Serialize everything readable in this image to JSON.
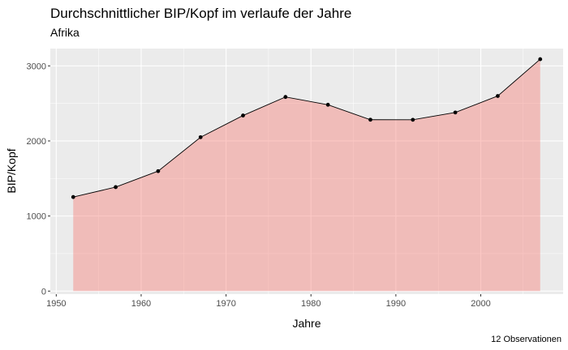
{
  "chart_data": {
    "type": "area",
    "title": "Durchschnittlicher BIP/Kopf im verlaufe der Jahre",
    "subtitle": "Afrika",
    "xlabel": "Jahre",
    "ylabel": "BIP/Kopf",
    "caption": "12 Observationen",
    "xlim": [
      1949.3,
      2009.7
    ],
    "ylim": [
      -40,
      3230
    ],
    "x_ticks": [
      1950,
      1960,
      1970,
      1980,
      1990,
      2000
    ],
    "y_ticks": [
      0,
      1000,
      2000,
      3000
    ],
    "x": [
      1952,
      1957,
      1962,
      1967,
      1972,
      1977,
      1982,
      1987,
      1992,
      1997,
      2002,
      2007
    ],
    "values": [
      1253,
      1385,
      1598,
      2050,
      2339,
      2586,
      2482,
      2283,
      2282,
      2379,
      2599,
      3089
    ],
    "grid": true,
    "colors": {
      "panel": "#ebebeb",
      "grid": "#ffffff",
      "area": "#f8766d",
      "line": "#000000",
      "point": "#000000"
    }
  }
}
